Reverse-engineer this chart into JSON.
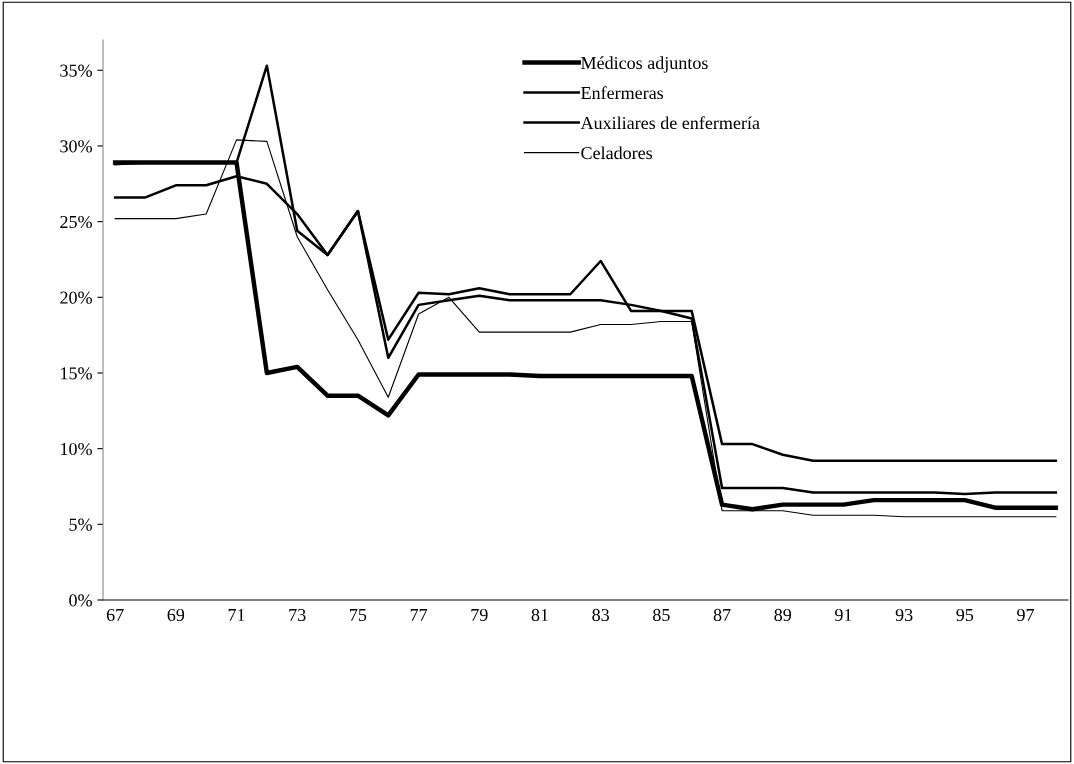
{
  "chart_data": {
    "type": "line",
    "categories": [
      "67",
      null,
      "69",
      null,
      "71",
      null,
      "73",
      null,
      "75",
      null,
      "77",
      null,
      "79",
      null,
      "81",
      null,
      "83",
      null,
      "85",
      null,
      "87",
      null,
      "89",
      null,
      "91",
      null,
      "93",
      null,
      "95",
      null,
      "97",
      null
    ],
    "series": [
      {
        "name": "Médicos adjuntos",
        "color": "#000000",
        "values": [
          28.9,
          28.9,
          28.9,
          28.9,
          28.9,
          15.0,
          15.4,
          13.5,
          13.5,
          12.2,
          14.9,
          14.9,
          14.9,
          14.9,
          14.8,
          14.8,
          14.8,
          14.8,
          14.8,
          14.8,
          6.3,
          6.0,
          6.3,
          6.3,
          6.3,
          6.6,
          6.6,
          6.6,
          6.6,
          6.1,
          6.1,
          6.1
        ]
      },
      {
        "name": "Enfermeras",
        "color": "#000000",
        "values": [
          28.8,
          28.9,
          28.9,
          28.9,
          28.9,
          35.3,
          24.4,
          22.8,
          25.7,
          17.2,
          20.3,
          20.2,
          20.6,
          20.2,
          20.2,
          20.2,
          22.4,
          19.1,
          19.1,
          19.1,
          10.3,
          10.3,
          9.6,
          9.2,
          9.2,
          9.2,
          9.2,
          9.2,
          9.2,
          9.2,
          9.2,
          9.2
        ]
      },
      {
        "name": "Auxiliares de enfermería",
        "color": "#000000",
        "values": [
          26.6,
          26.6,
          27.4,
          27.4,
          28.0,
          27.5,
          25.5,
          22.8,
          25.7,
          16.0,
          19.5,
          19.8,
          20.1,
          19.8,
          19.8,
          19.8,
          19.8,
          19.5,
          19.1,
          18.6,
          7.4,
          7.4,
          7.4,
          7.1,
          7.1,
          7.1,
          7.1,
          7.1,
          7.0,
          7.1,
          7.1,
          7.1
        ]
      },
      {
        "name": "Celadores",
        "color": "#000000",
        "values": [
          25.2,
          25.2,
          25.2,
          25.5,
          30.4,
          30.3,
          24.0,
          20.5,
          17.2,
          13.4,
          18.9,
          20.0,
          17.7,
          17.7,
          17.7,
          17.7,
          18.2,
          18.2,
          18.4,
          18.4,
          5.9,
          5.9,
          5.9,
          5.6,
          5.6,
          5.6,
          5.5,
          5.5,
          5.5,
          5.5,
          5.5,
          5.5
        ]
      }
    ],
    "ylim": [
      0,
      37
    ],
    "yticks": [
      {
        "value": 0,
        "label": "0%"
      },
      {
        "value": 5,
        "label": "5%"
      },
      {
        "value": 10,
        "label": "10%"
      },
      {
        "value": 15,
        "label": "15%"
      },
      {
        "value": 20,
        "label": "20%"
      },
      {
        "value": 25,
        "label": "25%"
      },
      {
        "value": 30,
        "label": "30%"
      },
      {
        "value": 35,
        "label": "35%"
      }
    ],
    "grid": false,
    "legend": "top",
    "marker": "none",
    "line_style": "solid"
  }
}
